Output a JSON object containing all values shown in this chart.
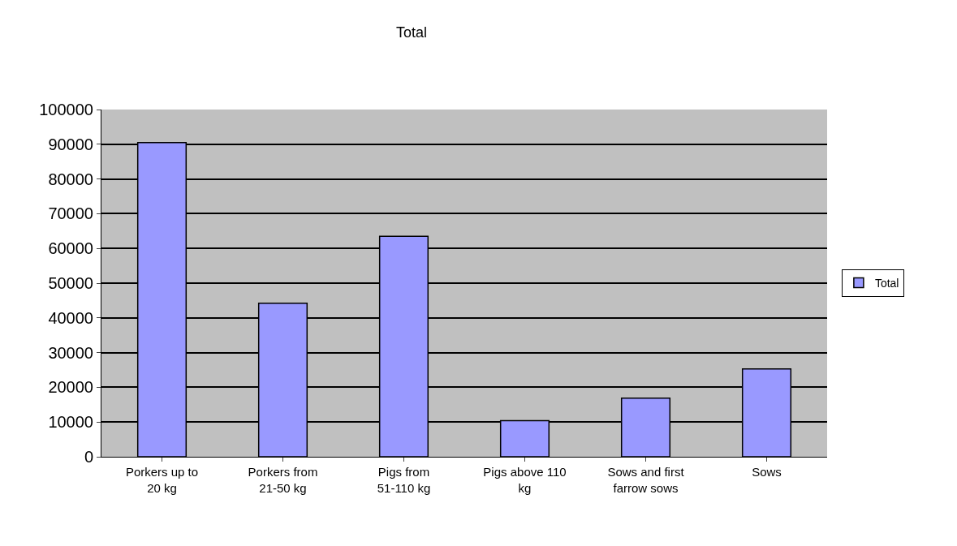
{
  "chart_data": {
    "type": "bar",
    "title": "Total",
    "categories": [
      "Porkers up to 20 kg",
      "Porkers from 21-50 kg",
      "Pigs from 51-110 kg",
      "Pigs above 110 kg",
      "Sows and first farrow sows",
      "Sows"
    ],
    "series": [
      {
        "name": "Total",
        "color": "#9999ff",
        "values": [
          90500,
          44200,
          63500,
          10400,
          16900,
          25300
        ]
      }
    ],
    "ylim": [
      0,
      100000
    ],
    "yticks": [
      0,
      10000,
      20000,
      30000,
      40000,
      50000,
      60000,
      70000,
      80000,
      90000,
      100000
    ],
    "grid": "y",
    "legend": "right"
  }
}
